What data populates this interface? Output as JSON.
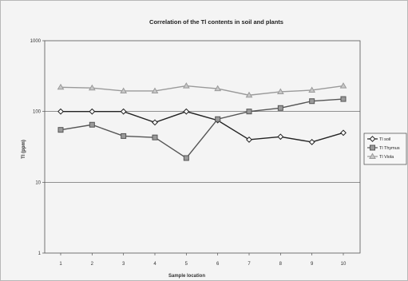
{
  "chart_data": {
    "type": "line",
    "title": "Correlation of the Tl contents in soil and plants",
    "xlabel": "Sample location",
    "ylabel": "Tl (ppm)",
    "y_scale": "log",
    "ylim": [
      1,
      1000
    ],
    "y_ticks": [
      "1",
      "10",
      "100",
      "1000"
    ],
    "categories": [
      "1",
      "2",
      "3",
      "4",
      "5",
      "6",
      "7",
      "8",
      "9",
      "10"
    ],
    "grid": "horizontal major gridlines",
    "legend_position": "right",
    "series": [
      {
        "name": "Tl soil",
        "marker": "diamond",
        "color": "#222222",
        "values": [
          100,
          100,
          100,
          70,
          100,
          75,
          40,
          44,
          37,
          50
        ]
      },
      {
        "name": "Tl Thymus",
        "marker": "square",
        "color": "#555555",
        "values": [
          55,
          65,
          45,
          43,
          22,
          78,
          100,
          112,
          140,
          150
        ]
      },
      {
        "name": "Tl Viola",
        "marker": "triangle",
        "color": "#9a9a9a",
        "values": [
          220,
          215,
          195,
          195,
          230,
          210,
          170,
          190,
          200,
          230
        ]
      }
    ]
  }
}
